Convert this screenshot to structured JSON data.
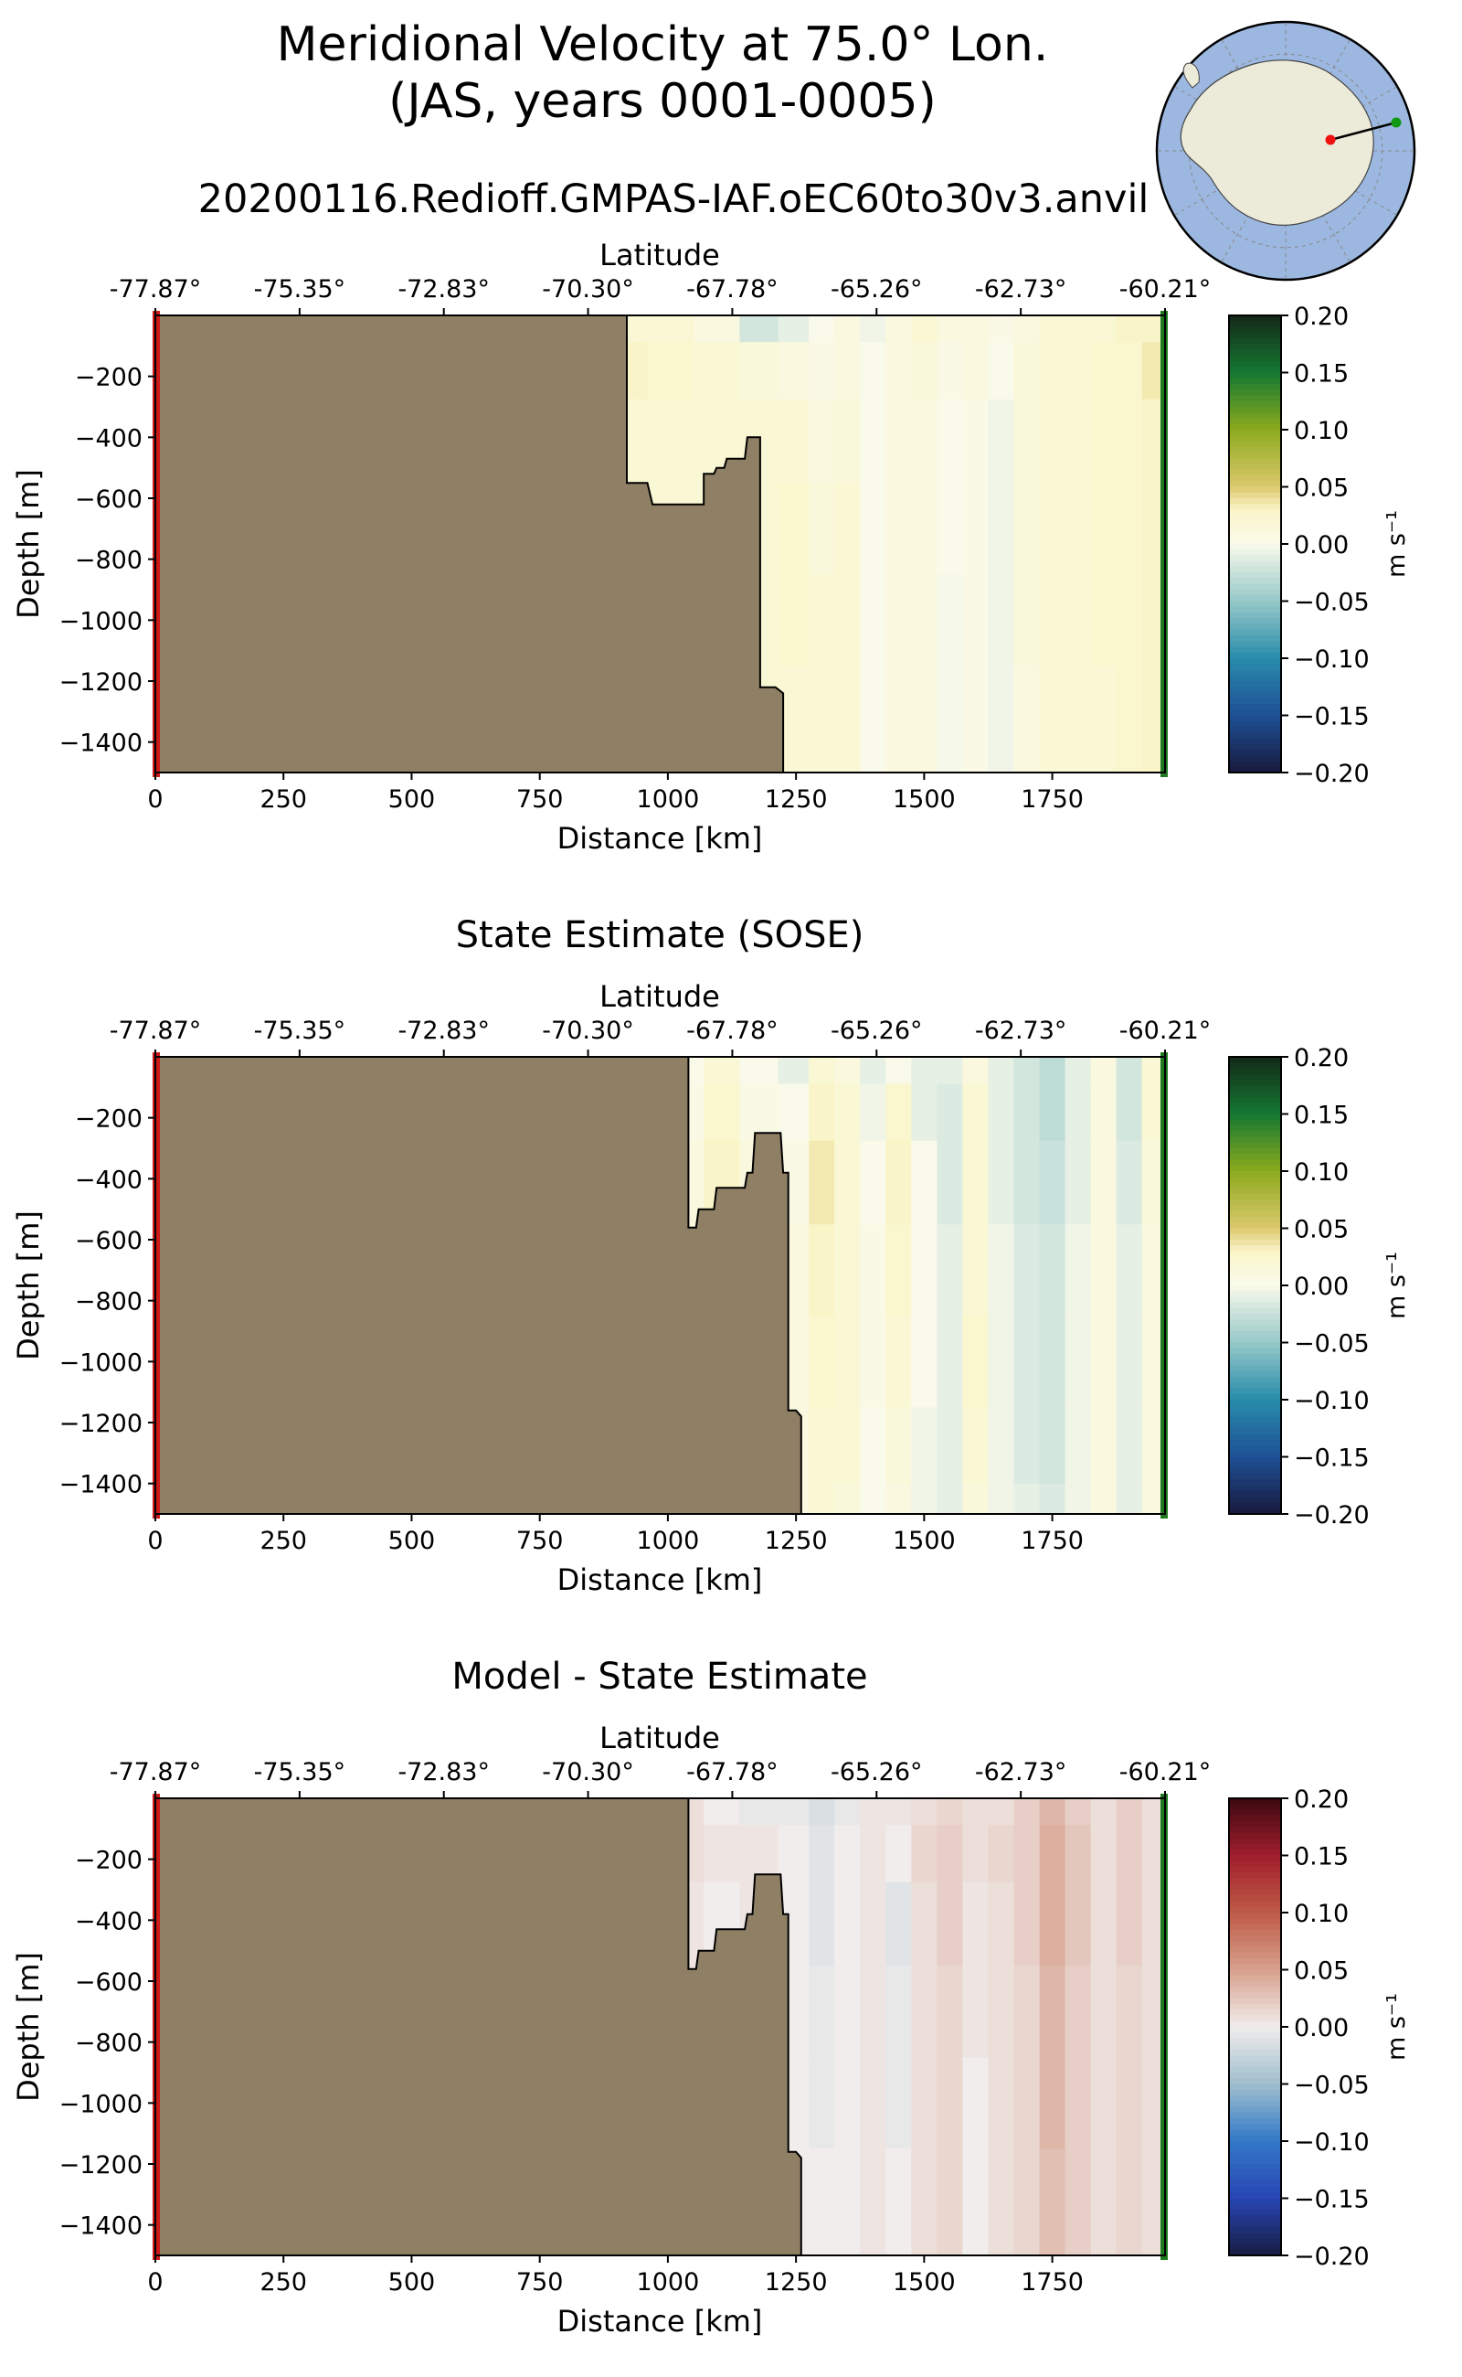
{
  "figure": {
    "title_line1": "Meridional Velocity at 75.0° Lon.",
    "title_line2": "(JAS, years 0001-0005)",
    "run_name": "20200116.Redioff.GMPAS-IAF.oEC60to30v3.anvil"
  },
  "colors": {
    "land": "#8f7f65",
    "start_marker": "#cc1a1a",
    "end_marker": "#1f7a1f",
    "map_ocean": "#9cb8e0",
    "map_land": "#ecebda"
  },
  "chart_data": [
    {
      "type": "heatmap",
      "panel": "model",
      "title": "",
      "xlabel": "Distance [km]",
      "ylabel": "Depth [m]",
      "top_axis_label": "Latitude",
      "top_tick_labels": [
        "-77.87°",
        "-75.35°",
        "-72.83°",
        "-70.30°",
        "-67.78°",
        "-65.26°",
        "-62.73°",
        "-60.21°"
      ],
      "xlim": [
        0,
        1970
      ],
      "ylim": [
        -1500,
        0
      ],
      "xticks": [
        0,
        250,
        500,
        750,
        1000,
        1250,
        1500,
        1750
      ],
      "yticks": [
        -200,
        -400,
        -600,
        -800,
        -1000,
        -1200,
        -1400
      ],
      "colorbar": {
        "label": "m s⁻¹",
        "vmin": -0.2,
        "vmax": 0.2,
        "ticks": [
          "0.20",
          "0.15",
          "0.10",
          "0.05",
          "0.00",
          "−0.05",
          "−0.10",
          "−0.15",
          "−0.20"
        ],
        "colormap": "delta"
      },
      "bathymetry": [
        [
          0,
          -1500
        ],
        [
          0,
          0
        ],
        [
          920,
          0
        ],
        [
          920,
          -550
        ],
        [
          960,
          -550
        ],
        [
          970,
          -620
        ],
        [
          1070,
          -620
        ],
        [
          1070,
          -520
        ],
        [
          1090,
          -520
        ],
        [
          1095,
          -500
        ],
        [
          1110,
          -500
        ],
        [
          1115,
          -470
        ],
        [
          1150,
          -470
        ],
        [
          1155,
          -400
        ],
        [
          1180,
          -400
        ],
        [
          1180,
          -1220
        ],
        [
          1210,
          -1220
        ],
        [
          1225,
          -1240
        ],
        [
          1225,
          -1500
        ]
      ],
      "field": {
        "columns_km": [
          920,
          1000,
          1100,
          1180,
          1250,
          1300,
          1350,
          1400,
          1450,
          1500,
          1550,
          1600,
          1650,
          1700,
          1750,
          1800,
          1850,
          1900,
          1950
        ],
        "rows_depth": [
          -25,
          -150,
          -400,
          -700,
          -1000,
          -1300,
          -1500
        ],
        "values": [
          [
            0.02,
            0.02,
            0.01,
            -0.02,
            -0.01,
            0.0,
            0.01,
            -0.005,
            0.01,
            0.02,
            0.01,
            0.01,
            0.005,
            0.01,
            0.02,
            0.02,
            0.02,
            0.03,
            0.03
          ],
          [
            0.03,
            0.025,
            0.02,
            0.015,
            0.01,
            0.005,
            0.01,
            0.0,
            0.01,
            0.015,
            0.005,
            0.01,
            0.0,
            0.015,
            0.02,
            0.02,
            0.025,
            0.025,
            0.035
          ],
          [
            0.02,
            0.02,
            0.02,
            0.02,
            0.02,
            0.01,
            0.015,
            0.0,
            0.01,
            0.01,
            0.0,
            0.005,
            -0.005,
            0.015,
            0.02,
            0.02,
            0.025,
            0.025,
            0.03
          ],
          [
            0.02,
            0.02,
            0.02,
            0.02,
            0.025,
            0.015,
            0.02,
            0.0,
            0.01,
            0.01,
            0.0,
            0.005,
            -0.005,
            0.015,
            0.02,
            0.02,
            0.025,
            0.025,
            0.03
          ],
          [
            0.02,
            0.02,
            0.02,
            0.02,
            0.025,
            0.02,
            0.02,
            0.0,
            0.01,
            0.01,
            -0.002,
            0.005,
            -0.005,
            0.015,
            0.02,
            0.02,
            0.025,
            0.025,
            0.03
          ],
          [
            0.02,
            0.02,
            0.02,
            0.02,
            0.02,
            0.02,
            0.02,
            0.0,
            0.01,
            0.01,
            -0.002,
            0.005,
            -0.005,
            0.01,
            0.02,
            0.02,
            0.02,
            0.025,
            0.03
          ],
          [
            0.02,
            0.02,
            0.02,
            0.02,
            0.02,
            0.02,
            0.02,
            0.0,
            0.01,
            0.01,
            -0.002,
            0.005,
            -0.005,
            0.01,
            0.02,
            0.02,
            0.02,
            0.025,
            0.03
          ]
        ]
      }
    },
    {
      "type": "heatmap",
      "panel": "reference",
      "title": "State Estimate (SOSE)",
      "xlabel": "Distance [km]",
      "ylabel": "Depth [m]",
      "top_axis_label": "Latitude",
      "top_tick_labels": [
        "-77.87°",
        "-75.35°",
        "-72.83°",
        "-70.30°",
        "-67.78°",
        "-65.26°",
        "-62.73°",
        "-60.21°"
      ],
      "xlim": [
        0,
        1970
      ],
      "ylim": [
        -1500,
        0
      ],
      "xticks": [
        0,
        250,
        500,
        750,
        1000,
        1250,
        1500,
        1750
      ],
      "yticks": [
        -200,
        -400,
        -600,
        -800,
        -1000,
        -1200,
        -1400
      ],
      "colorbar": {
        "label": "m s⁻¹",
        "vmin": -0.2,
        "vmax": 0.2,
        "ticks": [
          "0.20",
          "0.15",
          "0.10",
          "0.05",
          "0.00",
          "−0.05",
          "−0.10",
          "−0.15",
          "−0.20"
        ],
        "colormap": "delta"
      },
      "bathymetry": [
        [
          0,
          -1500
        ],
        [
          0,
          0
        ],
        [
          1040,
          0
        ],
        [
          1040,
          -560
        ],
        [
          1055,
          -560
        ],
        [
          1060,
          -500
        ],
        [
          1090,
          -500
        ],
        [
          1095,
          -430
        ],
        [
          1150,
          -430
        ],
        [
          1155,
          -380
        ],
        [
          1165,
          -380
        ],
        [
          1170,
          -250
        ],
        [
          1220,
          -250
        ],
        [
          1225,
          -380
        ],
        [
          1235,
          -380
        ],
        [
          1235,
          -1160
        ],
        [
          1250,
          -1160
        ],
        [
          1260,
          -1180
        ],
        [
          1260,
          -1500
        ]
      ],
      "field": {
        "columns_km": [
          1040,
          1100,
          1180,
          1250,
          1300,
          1350,
          1400,
          1450,
          1500,
          1550,
          1600,
          1650,
          1700,
          1750,
          1800,
          1850,
          1900,
          1950
        ],
        "rows_depth": [
          -25,
          -150,
          -400,
          -700,
          -1000,
          -1300,
          -1500
        ],
        "values": [
          [
            0.0,
            0.02,
            0.0,
            -0.01,
            0.02,
            0.01,
            -0.01,
            0.0,
            -0.01,
            -0.01,
            0.01,
            -0.01,
            -0.02,
            -0.03,
            -0.01,
            0.01,
            -0.02,
            0.02
          ],
          [
            0.005,
            0.025,
            0.005,
            0.0,
            0.03,
            0.02,
            -0.005,
            0.025,
            -0.01,
            -0.015,
            0.02,
            -0.01,
            -0.02,
            -0.03,
            -0.01,
            0.01,
            -0.02,
            0.02
          ],
          [
            0.01,
            0.03,
            0.01,
            0.005,
            0.035,
            0.02,
            0.0,
            0.03,
            0.0,
            -0.015,
            0.02,
            -0.01,
            -0.02,
            -0.025,
            -0.01,
            0.01,
            -0.015,
            0.015
          ],
          [
            0.01,
            0.02,
            0.01,
            0.01,
            0.03,
            0.02,
            0.005,
            0.025,
            0.0,
            -0.01,
            0.02,
            -0.005,
            -0.015,
            -0.02,
            -0.005,
            0.01,
            -0.01,
            0.01
          ],
          [
            0.01,
            0.02,
            0.01,
            0.01,
            0.025,
            0.02,
            0.005,
            0.02,
            0.0,
            -0.01,
            0.025,
            -0.005,
            -0.015,
            -0.02,
            -0.005,
            0.01,
            -0.01,
            0.01
          ],
          [
            0.01,
            0.02,
            0.01,
            0.01,
            0.02,
            0.02,
            0.0,
            0.015,
            -0.005,
            -0.01,
            0.02,
            -0.005,
            -0.015,
            -0.02,
            -0.005,
            0.01,
            -0.01,
            0.01
          ],
          [
            0.01,
            0.02,
            0.01,
            0.01,
            0.02,
            0.015,
            0.0,
            0.01,
            -0.005,
            -0.01,
            0.015,
            -0.005,
            -0.01,
            -0.015,
            -0.005,
            0.01,
            -0.01,
            0.01
          ]
        ]
      }
    },
    {
      "type": "heatmap",
      "panel": "difference",
      "title": "Model - State Estimate",
      "xlabel": "Distance [km]",
      "ylabel": "Depth [m]",
      "top_axis_label": "Latitude",
      "top_tick_labels": [
        "-77.87°",
        "-75.35°",
        "-72.83°",
        "-70.30°",
        "-67.78°",
        "-65.26°",
        "-62.73°",
        "-60.21°"
      ],
      "xlim": [
        0,
        1970
      ],
      "ylim": [
        -1500,
        0
      ],
      "xticks": [
        0,
        250,
        500,
        750,
        1000,
        1250,
        1500,
        1750
      ],
      "yticks": [
        -200,
        -400,
        -600,
        -800,
        -1000,
        -1200,
        -1400
      ],
      "colorbar": {
        "label": "m s⁻¹",
        "vmin": -0.2,
        "vmax": 0.2,
        "ticks": [
          "0.20",
          "0.15",
          "0.10",
          "0.05",
          "0.00",
          "−0.05",
          "−0.10",
          "−0.15",
          "−0.20"
        ],
        "colormap": "balance"
      },
      "bathymetry": [
        [
          0,
          -1500
        ],
        [
          0,
          0
        ],
        [
          1040,
          0
        ],
        [
          1040,
          -560
        ],
        [
          1055,
          -560
        ],
        [
          1060,
          -500
        ],
        [
          1090,
          -500
        ],
        [
          1095,
          -430
        ],
        [
          1150,
          -430
        ],
        [
          1155,
          -380
        ],
        [
          1165,
          -380
        ],
        [
          1170,
          -250
        ],
        [
          1220,
          -250
        ],
        [
          1225,
          -380
        ],
        [
          1235,
          -380
        ],
        [
          1235,
          -1160
        ],
        [
          1250,
          -1160
        ],
        [
          1260,
          -1180
        ],
        [
          1260,
          -1500
        ]
      ],
      "field": {
        "columns_km": [
          1040,
          1100,
          1180,
          1250,
          1300,
          1350,
          1400,
          1450,
          1500,
          1550,
          1600,
          1650,
          1700,
          1750,
          1800,
          1850,
          1900,
          1950
        ],
        "rows_depth": [
          -25,
          -150,
          -400,
          -700,
          -1000,
          -1300,
          -1500
        ],
        "values": [
          [
            0.01,
            0.0,
            -0.005,
            -0.005,
            -0.015,
            -0.005,
            0.005,
            0.005,
            0.01,
            0.015,
            0.01,
            0.01,
            0.02,
            0.035,
            0.02,
            0.01,
            0.02,
            0.01
          ],
          [
            0.01,
            0.005,
            0.005,
            0.0,
            -0.01,
            0.0,
            0.005,
            0.0,
            0.015,
            0.02,
            0.01,
            0.015,
            0.02,
            0.04,
            0.025,
            0.01,
            0.02,
            0.01
          ],
          [
            0.005,
            0.0,
            0.005,
            0.0,
            -0.01,
            0.0,
            0.005,
            -0.01,
            0.01,
            0.02,
            0.005,
            0.01,
            0.02,
            0.04,
            0.025,
            0.01,
            0.02,
            0.01
          ],
          [
            0.005,
            0.0,
            0.005,
            0.0,
            -0.005,
            0.0,
            0.005,
            -0.005,
            0.01,
            0.015,
            0.005,
            0.01,
            0.015,
            0.035,
            0.02,
            0.01,
            0.015,
            0.01
          ],
          [
            0.005,
            0.0,
            0.005,
            0.0,
            -0.005,
            0.0,
            0.005,
            -0.005,
            0.01,
            0.015,
            0.0,
            0.01,
            0.015,
            0.035,
            0.02,
            0.01,
            0.015,
            0.01
          ],
          [
            0.005,
            0.0,
            0.005,
            0.0,
            0.0,
            0.0,
            0.005,
            0.0,
            0.01,
            0.015,
            0.0,
            0.01,
            0.015,
            0.03,
            0.02,
            0.01,
            0.015,
            0.01
          ],
          [
            0.005,
            0.0,
            0.005,
            0.0,
            0.0,
            0.0,
            0.005,
            0.0,
            0.01,
            0.015,
            0.0,
            0.01,
            0.015,
            0.03,
            0.02,
            0.01,
            0.015,
            0.01
          ]
        ]
      }
    }
  ]
}
